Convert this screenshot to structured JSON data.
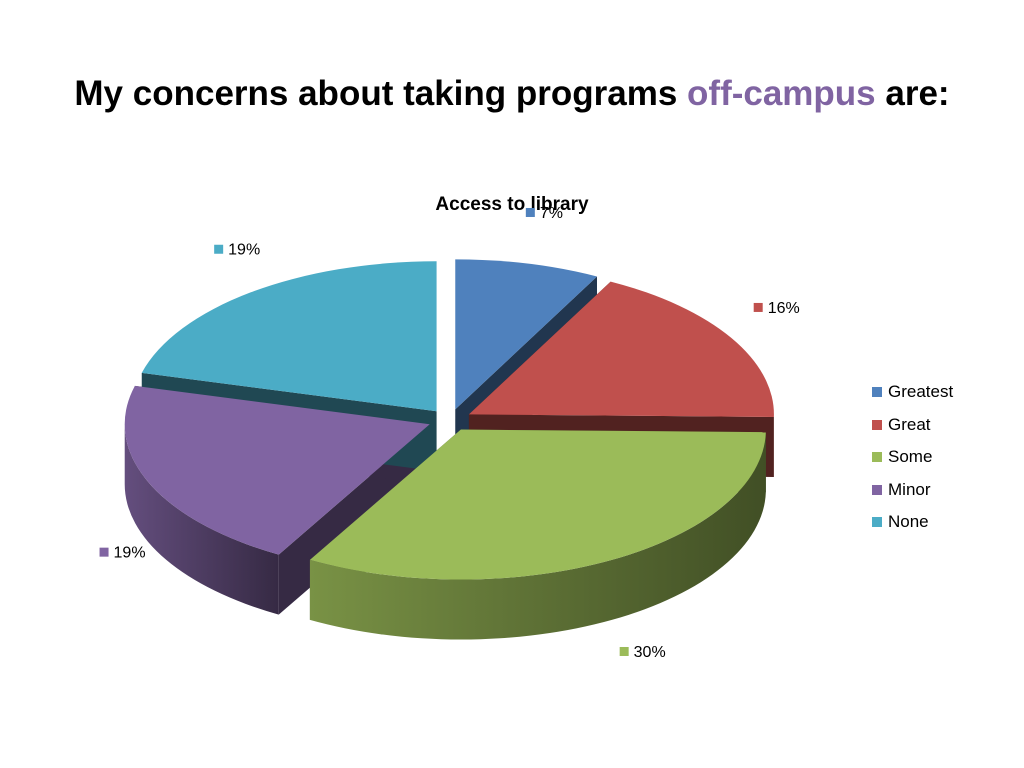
{
  "slide": {
    "title_main": "My concerns about taking programs ",
    "title_accent": "off-campus",
    "title_end": " are:"
  },
  "chart_data": {
    "type": "pie",
    "title": "Access to library",
    "exploded": true,
    "style": "3d",
    "legend_position": "right",
    "slices": [
      {
        "name": "Greatest",
        "value": 7,
        "label": "7%",
        "color": "#4f81bd"
      },
      {
        "name": "Great",
        "value": 16,
        "label": "16%",
        "color": "#c0504d"
      },
      {
        "name": "Some",
        "value": 30,
        "label": "30%",
        "color": "#9bbb59"
      },
      {
        "name": "Minor",
        "value": 19,
        "label": "19%",
        "color": "#8064a2"
      },
      {
        "name": "None",
        "value": 19,
        "label": "19%",
        "color": "#4bacc6"
      }
    ]
  }
}
